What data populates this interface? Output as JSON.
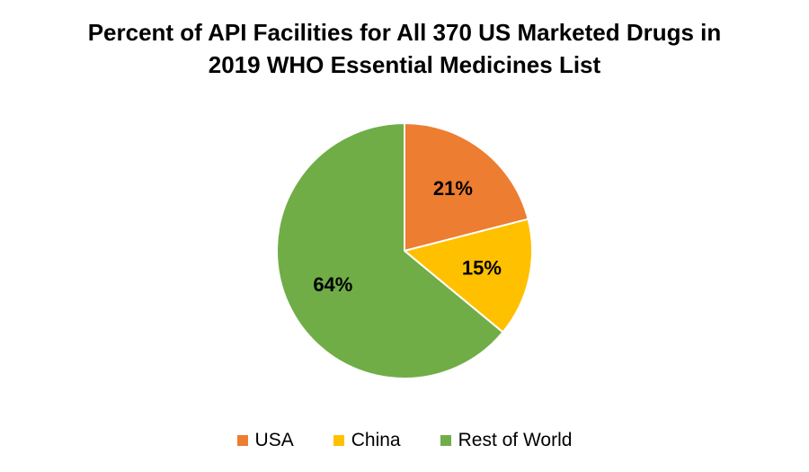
{
  "chart_data": {
    "type": "pie",
    "title_lines": [
      "Percent of API Facilities for All 370 US Marketed Drugs in",
      "2019 WHO Essential Medicines List"
    ],
    "categories": [
      "USA",
      "China",
      "Rest of World"
    ],
    "values": [
      21,
      15,
      64
    ],
    "data_labels": [
      "21%",
      "15%",
      "64%"
    ],
    "colors": [
      "#ED7D31",
      "#FFC000",
      "#70AD47"
    ],
    "legend_position": "bottom"
  }
}
